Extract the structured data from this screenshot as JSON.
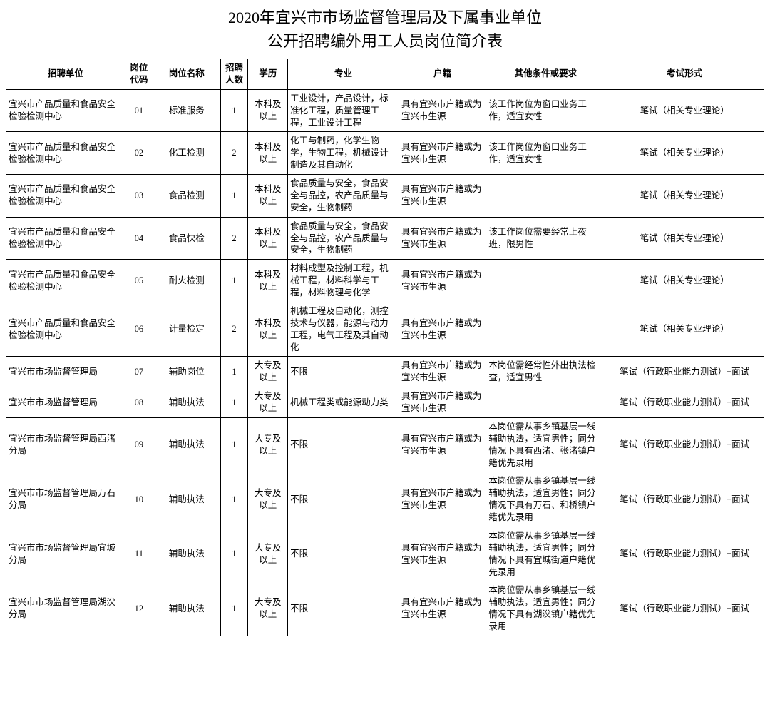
{
  "title_line1": "2020年宜兴市市场监督管理局及下属事业单位",
  "title_line2": "公开招聘编外用工人员岗位简介表",
  "headers": {
    "unit": "招聘单位",
    "code": "岗位代码",
    "pos": "岗位名称",
    "num": "招聘人数",
    "edu": "学历",
    "major": "专业",
    "huji": "户籍",
    "req": "其他条件或要求",
    "exam": "考试形式"
  },
  "rows": [
    {
      "unit": "宜兴市产品质量和食品安全检验检测中心",
      "code": "01",
      "pos": "标准服务",
      "num": "1",
      "edu": "本科及以上",
      "major": "工业设计，产品设计，标准化工程，质量管理工程，工业设计工程",
      "huji": "具有宜兴市户籍或为宜兴市生源",
      "req": "该工作岗位为窗口业务工作，适宜女性",
      "exam": "笔试（相关专业理论）"
    },
    {
      "unit": "宜兴市产品质量和食品安全检验检测中心",
      "code": "02",
      "pos": "化工检测",
      "num": "2",
      "edu": "本科及以上",
      "major": "化工与制药，化学生物学，生物工程，机械设计制造及其自动化",
      "huji": "具有宜兴市户籍或为宜兴市生源",
      "req": "该工作岗位为窗口业务工作，适宜女性",
      "exam": "笔试（相关专业理论）"
    },
    {
      "unit": "宜兴市产品质量和食品安全检验检测中心",
      "code": "03",
      "pos": "食品检测",
      "num": "1",
      "edu": "本科及以上",
      "major": "食品质量与安全，食品安全与品控，农产品质量与安全，生物制药",
      "huji": "具有宜兴市户籍或为宜兴市生源",
      "req": "",
      "exam": "笔试（相关专业理论）"
    },
    {
      "unit": "宜兴市产品质量和食品安全检验检测中心",
      "code": "04",
      "pos": "食品快检",
      "num": "2",
      "edu": "本科及以上",
      "major": "食品质量与安全，食品安全与品控，农产品质量与安全，生物制药",
      "huji": "具有宜兴市户籍或为宜兴市生源",
      "req": "该工作岗位需要经常上夜班，限男性",
      "exam": "笔试（相关专业理论）"
    },
    {
      "unit": "宜兴市产品质量和食品安全检验检测中心",
      "code": "05",
      "pos": "耐火检测",
      "num": "1",
      "edu": "本科及以上",
      "major": "材料成型及控制工程，机械工程，材料科学与工程，材料物理与化学",
      "huji": "具有宜兴市户籍或为宜兴市生源",
      "req": "",
      "exam": "笔试（相关专业理论）"
    },
    {
      "unit": "宜兴市产品质量和食品安全检验检测中心",
      "code": "06",
      "pos": "计量检定",
      "num": "2",
      "edu": "本科及以上",
      "major": "机械工程及自动化，测控技术与仪器，能源与动力工程，电气工程及其自动化",
      "huji": "具有宜兴市户籍或为宜兴市生源",
      "req": "",
      "exam": "笔试（相关专业理论）"
    },
    {
      "unit": "宜兴市市场监督管理局",
      "code": "07",
      "pos": "辅助岗位",
      "num": "1",
      "edu": "大专及以上",
      "major": "不限",
      "huji": "具有宜兴市户籍或为宜兴市生源",
      "req": "本岗位需经常性外出执法检查，适宜男性",
      "exam": "笔试（行政职业能力测试）+面试"
    },
    {
      "unit": "宜兴市市场监督管理局",
      "code": "08",
      "pos": "辅助执法",
      "num": "1",
      "edu": "大专及以上",
      "major": "机械工程类或能源动力类",
      "huji": "具有宜兴市户籍或为宜兴市生源",
      "req": "",
      "exam": "笔试（行政职业能力测试）+面试"
    },
    {
      "unit": "宜兴市市场监督管理局西渚分局",
      "code": "09",
      "pos": "辅助执法",
      "num": "1",
      "edu": "大专及以上",
      "major": "不限",
      "huji": "具有宜兴市户籍或为宜兴市生源",
      "req": "本岗位需从事乡镇基层一线辅助执法，适宜男性；同分情况下具有西渚、张渚镇户籍优先录用",
      "exam": "笔试（行政职业能力测试）+面试"
    },
    {
      "unit": "宜兴市市场监督管理局万石分局",
      "code": "10",
      "pos": "辅助执法",
      "num": "1",
      "edu": "大专及以上",
      "major": "不限",
      "huji": "具有宜兴市户籍或为宜兴市生源",
      "req": "本岗位需从事乡镇基层一线辅助执法，适宜男性；同分情况下具有万石、和桥镇户籍优先录用",
      "exam": "笔试（行政职业能力测试）+面试"
    },
    {
      "unit": "宜兴市市场监督管理局宜城分局",
      "code": "11",
      "pos": "辅助执法",
      "num": "1",
      "edu": "大专及以上",
      "major": "不限",
      "huji": "具有宜兴市户籍或为宜兴市生源",
      "req": "本岗位需从事乡镇基层一线辅助执法，适宜男性；同分情况下具有宜城街道户籍优先录用",
      "exam": "笔试（行政职业能力测试）+面试"
    },
    {
      "unit": "宜兴市市场监督管理局湖㳇分局",
      "code": "12",
      "pos": "辅助执法",
      "num": "1",
      "edu": "大专及以上",
      "major": "不限",
      "huji": "具有宜兴市户籍或为宜兴市生源",
      "req": "本岗位需从事乡镇基层一线辅助执法，适宜男性；同分情况下具有湖㳇镇户籍优先录用",
      "exam": "笔试（行政职业能力测试）+面试"
    }
  ]
}
